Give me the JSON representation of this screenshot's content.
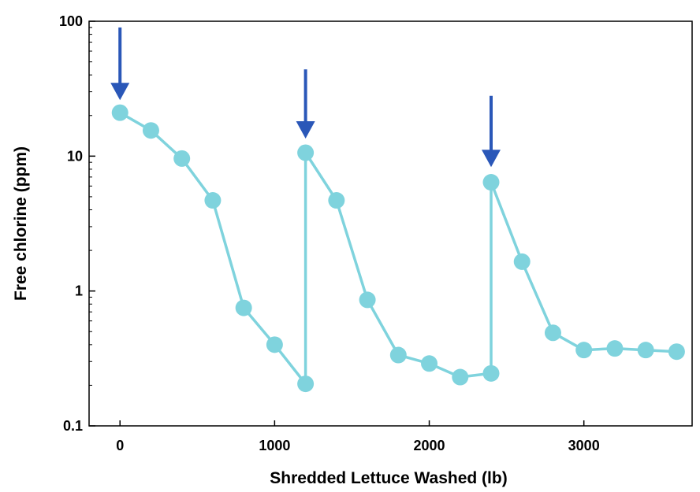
{
  "chart_data": {
    "type": "line",
    "title": "",
    "xlabel": "Shredded Lettuce Washed (lb)",
    "ylabel": "Free chlorine (ppm)",
    "xlim": [
      -200,
      3700
    ],
    "ylim": [
      0.1,
      100
    ],
    "y_scale": "log",
    "grid": false,
    "x_ticks": [
      0,
      1000,
      2000,
      3000
    ],
    "x_tick_labels": [
      "0",
      "1000",
      "2000",
      "3000"
    ],
    "y_ticks": [
      0.1,
      1,
      10,
      100
    ],
    "y_tick_labels": [
      "0.1",
      "1",
      "10",
      "100"
    ],
    "series": [
      {
        "color": "#7fd3dd",
        "points": [
          [
            0,
            21
          ],
          [
            200,
            15.5
          ],
          [
            400,
            9.6
          ],
          [
            600,
            4.7
          ],
          [
            800,
            0.75
          ],
          [
            1000,
            0.4
          ],
          [
            1200,
            0.205
          ],
          [
            1200,
            10.6
          ],
          [
            1400,
            4.7
          ],
          [
            1600,
            0.86
          ],
          [
            1800,
            0.335
          ],
          [
            2000,
            0.29
          ],
          [
            2200,
            0.23
          ],
          [
            2400,
            0.245
          ],
          [
            2400,
            6.4
          ],
          [
            2600,
            1.65
          ],
          [
            2800,
            0.49
          ],
          [
            3000,
            0.365
          ],
          [
            3200,
            0.375
          ],
          [
            3400,
            0.365
          ],
          [
            3600,
            0.355
          ]
        ]
      }
    ],
    "annotations": [
      {
        "type": "arrow",
        "x": 0,
        "from_y": 90,
        "to_y": 26,
        "color": "#2a57b8"
      },
      {
        "type": "arrow",
        "x": 1200,
        "from_y": 44,
        "to_y": 13.5,
        "color": "#2a57b8"
      },
      {
        "type": "arrow",
        "x": 2400,
        "from_y": 28,
        "to_y": 8.3,
        "color": "#2a57b8"
      }
    ]
  }
}
